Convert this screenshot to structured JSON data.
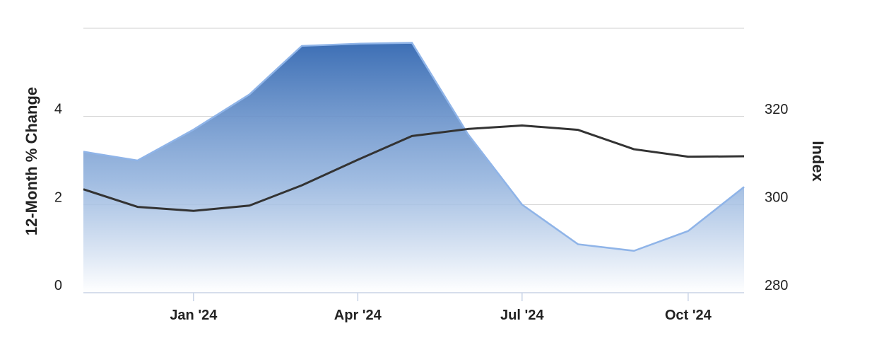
{
  "chart_data": {
    "type": "area",
    "x_axis": {
      "type": "date",
      "range": [
        "2023-11-01",
        "2024-11-01"
      ],
      "tick_labels": [
        "Jan '24",
        "Apr '24",
        "Jul '24",
        "Oct '24"
      ],
      "tick_dates": [
        "2024-01-01",
        "2024-04-01",
        "2024-07-01",
        "2024-10-01"
      ]
    },
    "y_left": {
      "label": "12‑Month % Change",
      "ylim": [
        0,
        6
      ],
      "ticks": [
        0,
        2,
        4
      ],
      "tick_labels": [
        "0",
        "2",
        "4"
      ]
    },
    "y_right": {
      "label": "Index",
      "ylim": [
        280,
        320
      ],
      "ticks": [
        280,
        300,
        320
      ],
      "tick_labels": [
        "280",
        "300",
        "320"
      ]
    },
    "grid": true,
    "legend": "none",
    "series": [
      {
        "type": "area",
        "axis": "left",
        "color": "#3d71b6",
        "points": [
          {
            "date": "2023-11-01",
            "value": 3.2
          },
          {
            "date": "2023-12-01",
            "value": 3.0
          },
          {
            "date": "2024-01-01",
            "value": 3.7
          },
          {
            "date": "2024-02-01",
            "value": 4.5
          },
          {
            "date": "2024-03-01",
            "value": 5.6
          },
          {
            "date": "2024-04-01",
            "value": 5.65
          },
          {
            "date": "2024-05-01",
            "value": 5.67
          },
          {
            "date": "2024-06-01",
            "value": 3.6
          },
          {
            "date": "2024-07-01",
            "value": 2.0
          },
          {
            "date": "2024-08-01",
            "value": 1.1
          },
          {
            "date": "2024-09-01",
            "value": 0.95
          },
          {
            "date": "2024-10-01",
            "value": 1.4
          },
          {
            "date": "2024-11-01",
            "value": 2.4
          }
        ]
      },
      {
        "type": "line",
        "axis": "right",
        "color": "#333333",
        "points": [
          {
            "date": "2023-11-01",
            "value": 303.5
          },
          {
            "date": "2023-12-01",
            "value": 299.5
          },
          {
            "date": "2024-01-01",
            "value": 298.6
          },
          {
            "date": "2024-02-01",
            "value": 299.8
          },
          {
            "date": "2024-03-01",
            "value": 304.4
          },
          {
            "date": "2024-04-01",
            "value": 310.2
          },
          {
            "date": "2024-05-01",
            "value": 315.6
          },
          {
            "date": "2024-06-01",
            "value": 317.2
          },
          {
            "date": "2024-07-01",
            "value": 318.0
          },
          {
            "date": "2024-08-01",
            "value": 317.0
          },
          {
            "date": "2024-09-01",
            "value": 312.6
          },
          {
            "date": "2024-10-01",
            "value": 310.9
          },
          {
            "date": "2024-11-01",
            "value": 311.0
          }
        ]
      }
    ]
  }
}
